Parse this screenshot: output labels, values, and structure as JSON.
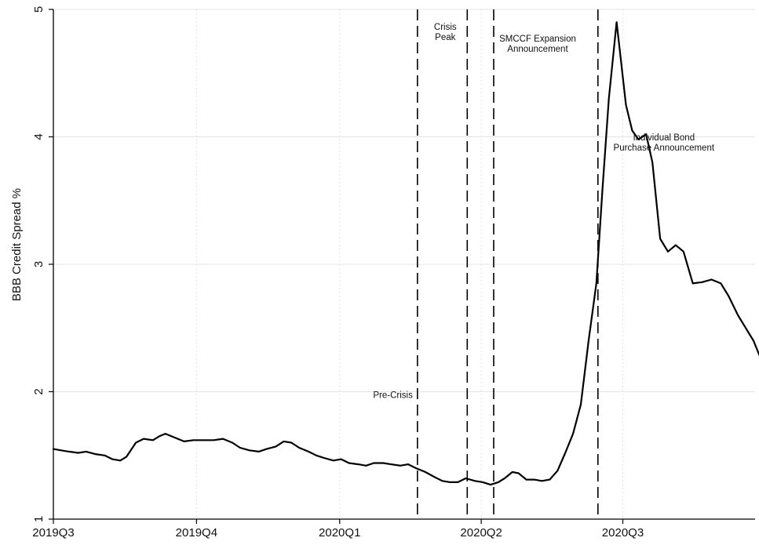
{
  "chart_data": {
    "type": "line",
    "title": "",
    "xlabel": "",
    "ylabel": "BBB Credit Spread %",
    "ylim": [
      1,
      5
    ],
    "xlim": [
      "2019-07-01",
      "2020-09-24"
    ],
    "grid": true,
    "yticks": [
      1,
      2,
      3,
      4,
      5
    ],
    "xticks": [
      {
        "label": "2019Q3",
        "date": "2019-07-01"
      },
      {
        "label": "2019Q4",
        "date": "2019-10-01"
      },
      {
        "label": "2020Q1",
        "date": "2020-01-01"
      },
      {
        "label": "2020Q2",
        "date": "2020-04-01"
      },
      {
        "label": "2020Q3",
        "date": "2020-07-01"
      }
    ],
    "annotations": [
      {
        "date": "2020-02-20",
        "lines": [
          "Pre-Crisis"
        ],
        "placement": "left-low"
      },
      {
        "date": "2020-03-23",
        "lines": [
          "Crisis",
          "Peak"
        ],
        "placement": "left-top"
      },
      {
        "date": "2020-04-09",
        "lines": [
          "SMCCF Expansion",
          "Announcement"
        ],
        "placement": "right-top"
      },
      {
        "date": "2020-06-15",
        "lines": [
          "Individual Bond",
          "Purchase Announcement"
        ],
        "placement": "right-mid"
      }
    ],
    "series": [
      {
        "points": [
          [
            "2019-07-01",
            1.55
          ],
          [
            "2019-07-06",
            1.54
          ],
          [
            "2019-07-11",
            1.53
          ],
          [
            "2019-07-17",
            1.52
          ],
          [
            "2019-07-22",
            1.53
          ],
          [
            "2019-07-28",
            1.51
          ],
          [
            "2019-08-03",
            1.5
          ],
          [
            "2019-08-08",
            1.47
          ],
          [
            "2019-08-13",
            1.46
          ],
          [
            "2019-08-17",
            1.49
          ],
          [
            "2019-08-23",
            1.6
          ],
          [
            "2019-08-28",
            1.63
          ],
          [
            "2019-09-03",
            1.62
          ],
          [
            "2019-09-07",
            1.65
          ],
          [
            "2019-09-11",
            1.67
          ],
          [
            "2019-09-17",
            1.64
          ],
          [
            "2019-09-23",
            1.61
          ],
          [
            "2019-09-29",
            1.62
          ],
          [
            "2019-10-06",
            1.62
          ],
          [
            "2019-10-12",
            1.62
          ],
          [
            "2019-10-18",
            1.63
          ],
          [
            "2019-10-24",
            1.6
          ],
          [
            "2019-10-29",
            1.56
          ],
          [
            "2019-11-04",
            1.54
          ],
          [
            "2019-11-10",
            1.53
          ],
          [
            "2019-11-15",
            1.55
          ],
          [
            "2019-11-21",
            1.57
          ],
          [
            "2019-11-26",
            1.61
          ],
          [
            "2019-12-01",
            1.6
          ],
          [
            "2019-12-06",
            1.56
          ],
          [
            "2019-12-12",
            1.53
          ],
          [
            "2019-12-17",
            1.5
          ],
          [
            "2019-12-22",
            1.48
          ],
          [
            "2019-12-28",
            1.46
          ],
          [
            "2020-01-02",
            1.47
          ],
          [
            "2020-01-07",
            1.44
          ],
          [
            "2020-01-13",
            1.43
          ],
          [
            "2020-01-18",
            1.42
          ],
          [
            "2020-01-23",
            1.44
          ],
          [
            "2020-01-29",
            1.44
          ],
          [
            "2020-02-03",
            1.43
          ],
          [
            "2020-02-09",
            1.42
          ],
          [
            "2020-02-14",
            1.43
          ],
          [
            "2020-02-19",
            1.4
          ],
          [
            "2020-02-25",
            1.37
          ],
          [
            "2020-03-02",
            1.33
          ],
          [
            "2020-03-07",
            1.3
          ],
          [
            "2020-03-12",
            1.29
          ],
          [
            "2020-03-17",
            1.29
          ],
          [
            "2020-03-22",
            1.32
          ],
          [
            "2020-03-28",
            1.3
          ],
          [
            "2020-04-02",
            1.29
          ],
          [
            "2020-04-07",
            1.27
          ],
          [
            "2020-04-12",
            1.29
          ],
          [
            "2020-04-16",
            1.32
          ],
          [
            "2020-04-21",
            1.37
          ],
          [
            "2020-04-25",
            1.36
          ],
          [
            "2020-04-30",
            1.31
          ],
          [
            "2020-05-05",
            1.31
          ],
          [
            "2020-05-10",
            1.3
          ],
          [
            "2020-05-15",
            1.31
          ],
          [
            "2020-05-20",
            1.38
          ],
          [
            "2020-05-25",
            1.52
          ],
          [
            "2020-05-30",
            1.67
          ],
          [
            "2020-06-04",
            1.9
          ],
          [
            "2020-06-09",
            2.4
          ],
          [
            "2020-06-14",
            2.85
          ],
          [
            "2020-06-18",
            3.6
          ],
          [
            "2020-06-22",
            4.3
          ],
          [
            "2020-06-27",
            4.9
          ],
          [
            "2020-07-03",
            4.25
          ],
          [
            "2020-07-07",
            4.05
          ],
          [
            "2020-07-11",
            3.98
          ],
          [
            "2020-07-16",
            4.02
          ],
          [
            "2020-07-20",
            3.8
          ],
          [
            "2020-07-25",
            3.2
          ],
          [
            "2020-07-30",
            3.1
          ],
          [
            "2020-08-04",
            3.15
          ],
          [
            "2020-08-09",
            3.1
          ],
          [
            "2020-08-15",
            2.85
          ],
          [
            "2020-08-21",
            2.86
          ],
          [
            "2020-08-27",
            2.88
          ],
          [
            "2020-09-02",
            2.85
          ],
          [
            "2020-09-07",
            2.75
          ],
          [
            "2020-09-13",
            2.6
          ],
          [
            "2020-09-18",
            2.5
          ],
          [
            "2020-09-23",
            2.4
          ],
          [
            "2020-09-28",
            2.25
          ]
        ]
      }
    ]
  }
}
